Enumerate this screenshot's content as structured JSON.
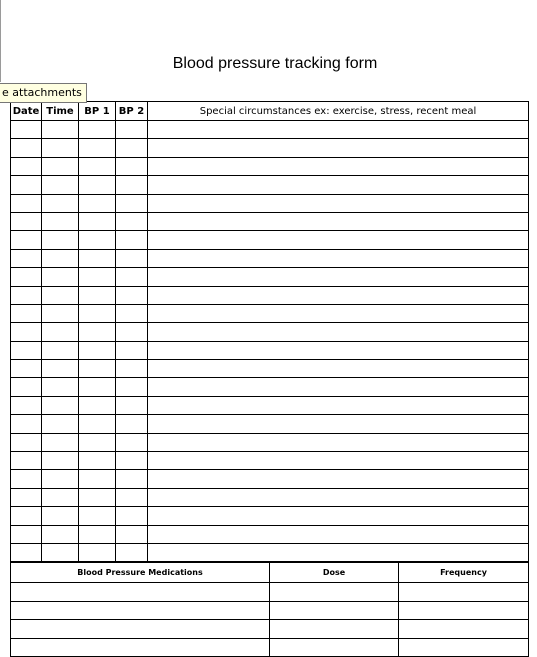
{
  "document": {
    "title": "Blood pressure tracking form"
  },
  "tooltip": {
    "text": "e attachments"
  },
  "log_table": {
    "headers": {
      "date": "Date",
      "time": "Time",
      "bp1": "BP 1",
      "bp2": "BP 2",
      "notes": "Special circumstances ex: exercise, stress, recent meal"
    },
    "row_count": 24
  },
  "meds_table": {
    "headers": {
      "medication": "Blood Pressure Medications",
      "dose": "Dose",
      "frequency": "Frequency"
    },
    "row_count": 4
  }
}
